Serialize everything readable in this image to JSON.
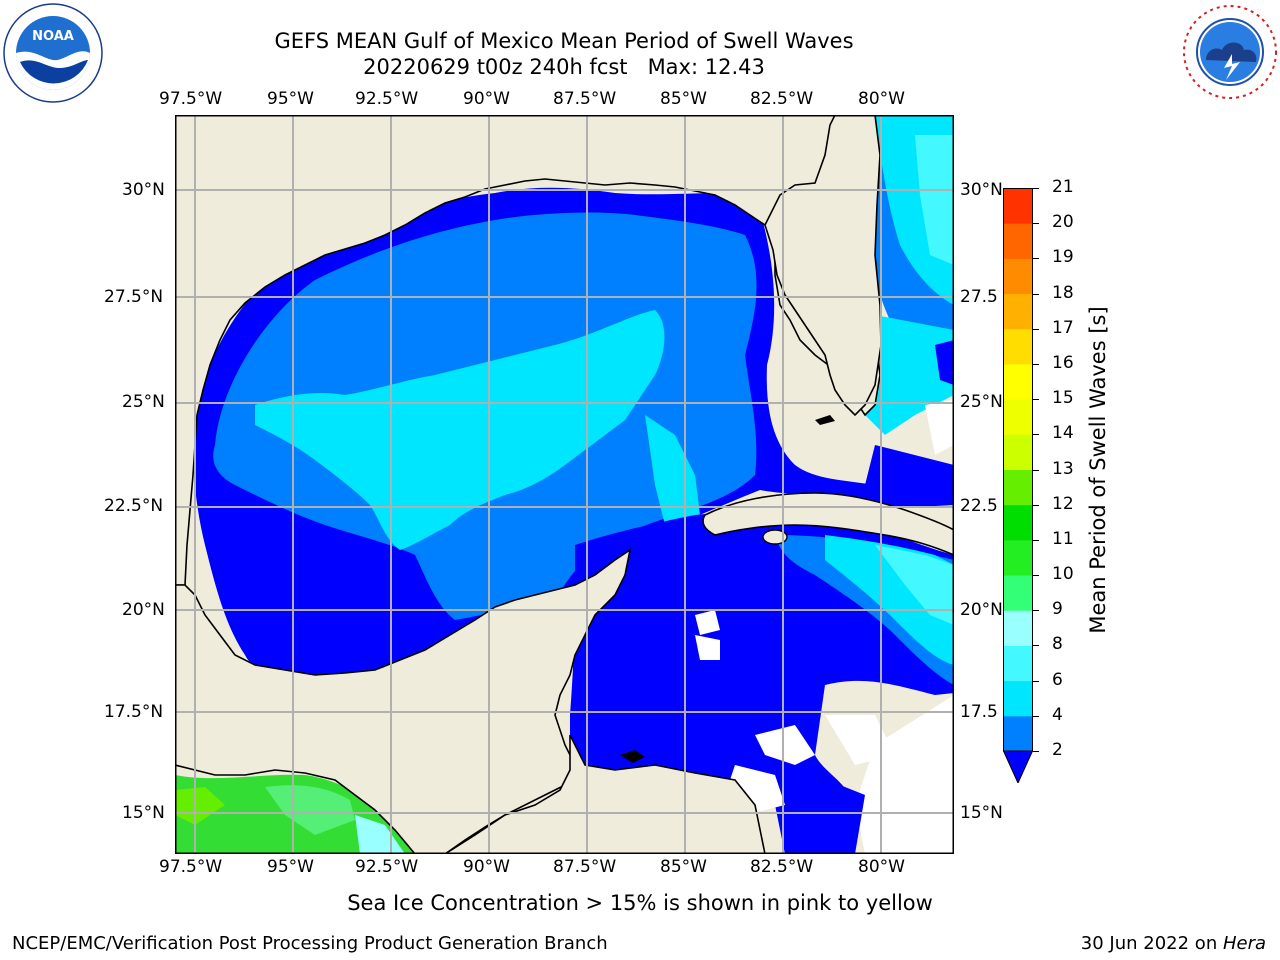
{
  "header": {
    "title_line1": "GEFS MEAN Gulf of Mexico Mean Period of Swell Waves",
    "title_line2": "20220629 t00z 240h fcst   Max: 12.43"
  },
  "logos": {
    "noaa_text": "NOAA",
    "noaa_ring_text": "NATIONAL OCEANIC AND ATMOSPHERIC ADMINISTRATION · U.S. DEPARTMENT OF COMMERCE",
    "nws_ring_text": "NATIONAL WEATHER SERVICE"
  },
  "map": {
    "lon_labels": [
      "97.5°W",
      "95°W",
      "92.5°W",
      "90°W",
      "87.5°W",
      "85°W",
      "82.5°W",
      "80°W"
    ],
    "lat_labels_left": [
      "30°N",
      "27.5°N",
      "25°N",
      "22.5°N",
      "20°N",
      "17.5°N",
      "15°N"
    ],
    "lat_labels_right": [
      "30°N",
      "27.5",
      "25°N",
      "22.5",
      "20°N",
      "17.5",
      "15°N"
    ],
    "colors": {
      "land": "#efecdc",
      "grid": "#b0b0b0",
      "coast": "#000000",
      "missing": "#ffffff"
    }
  },
  "colorbar": {
    "label": "Mean Period of Swell Waves [s]",
    "ticks": [
      "2",
      "4",
      "6",
      "8",
      "9",
      "10",
      "11",
      "12",
      "13",
      "14",
      "15",
      "16",
      "17",
      "18",
      "19",
      "20",
      "21"
    ],
    "colors": [
      "#0000ff",
      "#0080ff",
      "#00e6ff",
      "#44f8ff",
      "#99ffff",
      "#33ff77",
      "#22ee22",
      "#00dd00",
      "#66ee00",
      "#ccff00",
      "#eeff00",
      "#ffff00",
      "#ffdd00",
      "#ffb000",
      "#ff8c00",
      "#ff6600",
      "#ff3300",
      "#ff0000"
    ]
  },
  "footer": {
    "ice_note": "Sea Ice Concentration > 15% is shown in pink to yellow",
    "credit": "NCEP/EMC/Verification Post Processing Product Generation Branch",
    "date_prefix": "30 Jun 2022 on ",
    "date_machine": "Hera"
  }
}
